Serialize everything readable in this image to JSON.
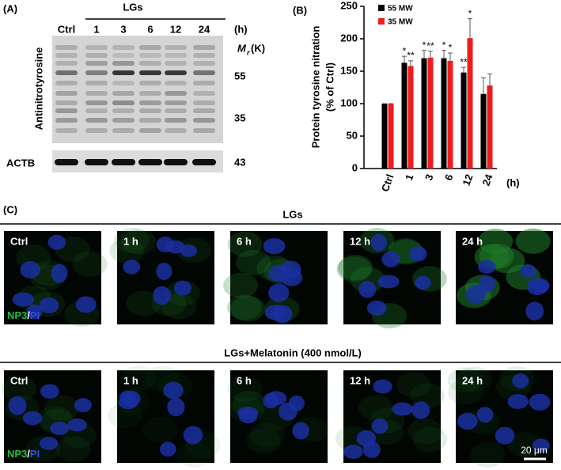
{
  "panel_a": {
    "label": "(A)",
    "treatment": "LGs",
    "lanes": [
      "Ctrl",
      "1",
      "3",
      "6",
      "12",
      "24"
    ],
    "time_unit": "(h)",
    "mw_label": {
      "symbol": "M",
      "subscript": "r",
      "unit": " (K)"
    },
    "markers": [
      "55",
      "35",
      "43"
    ],
    "blot_labels": [
      "Antinitrotyrosine",
      "ACTB"
    ]
  },
  "chart_data": {
    "type": "bar",
    "panel_label": "(B)",
    "ylabel": [
      "Protein tyrosine nitration",
      "(% of Ctrl)"
    ],
    "xlabel": "(h)",
    "categories": [
      "Ctrl",
      "1",
      "3",
      "6",
      "12",
      "24"
    ],
    "series": [
      {
        "name": "55 MW",
        "color": "#000000",
        "values": [
          100,
          163,
          170,
          170,
          148,
          115
        ],
        "errors": [
          0,
          10,
          12,
          12,
          8,
          25
        ],
        "significance": [
          null,
          "*",
          "*",
          "*",
          "**",
          null
        ]
      },
      {
        "name": "35 MW",
        "color": "#ee1c1c",
        "values": [
          100,
          158,
          171,
          166,
          201,
          128
        ],
        "errors": [
          0,
          8,
          10,
          12,
          30,
          18
        ],
        "significance": [
          null,
          "**",
          "**",
          "*",
          "*",
          null
        ]
      }
    ],
    "ylim": [
      0,
      250
    ],
    "yticks": [
      0,
      50,
      100,
      150,
      200,
      250
    ],
    "legend": "upper left"
  },
  "panel_c": {
    "label": "(C)",
    "scale_bar": "20 μm",
    "rows": [
      {
        "title": "LGs",
        "images": [
          "Ctrl",
          "1 h",
          "6 h",
          "12 h",
          "24 h"
        ],
        "stain": [
          "NP3",
          "/",
          "PI"
        ]
      },
      {
        "title": "LGs+Melatonin (400 nmol/L)",
        "images": [
          "Ctrl",
          "1 h",
          "6 h",
          "12 h",
          "24 h"
        ],
        "stain": [
          "NP3",
          "/",
          "PI"
        ]
      }
    ]
  }
}
